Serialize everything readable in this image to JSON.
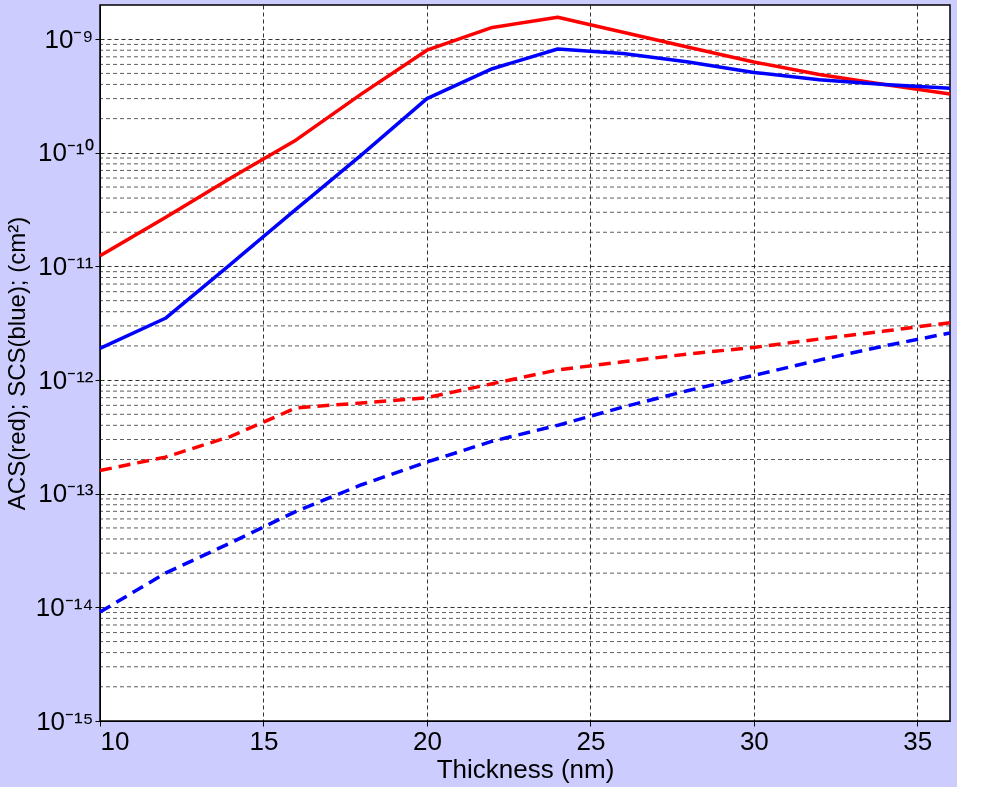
{
  "chart_data": {
    "type": "line",
    "xlabel": "Thickness (nm)",
    "ylabel": "ACS(red); SCS(blue); (cm²)",
    "x": [
      10,
      12,
      14,
      16,
      18,
      20,
      22,
      24,
      26,
      28,
      30,
      32,
      34,
      36
    ],
    "series": [
      {
        "color": "#ff0000",
        "line_style": "solid",
        "values": [
          1.24e-11,
          2.7e-11,
          6e-11,
          1.3e-10,
          3.3e-10,
          8e-10,
          1.27e-09,
          1.56e-09,
          1.15e-09,
          8.5e-10,
          6.3e-10,
          4.9e-10,
          4e-10,
          3.3e-10
        ]
      },
      {
        "color": "#0000ff",
        "line_style": "solid",
        "values": [
          1.9e-12,
          3.5e-12,
          1.05e-11,
          3.2e-11,
          9.6e-11,
          3e-10,
          5.5e-10,
          8.2e-10,
          7.5e-10,
          6.3e-10,
          5.1e-10,
          4.4e-10,
          4e-10,
          3.7e-10
        ]
      },
      {
        "color": "#ff0000",
        "line_style": "dashed",
        "values": [
          1.6e-13,
          2.1e-13,
          3.2e-13,
          5.7e-13,
          6.3e-13,
          7e-13,
          9.3e-13,
          1.23e-12,
          1.45e-12,
          1.7e-12,
          1.94e-12,
          2.3e-12,
          2.7e-12,
          3.2e-12
        ]
      },
      {
        "color": "#0000ff",
        "line_style": "dashed",
        "values": [
          9.1e-15,
          2e-14,
          3.7e-14,
          7e-14,
          1.2e-13,
          1.9e-13,
          2.9e-13,
          4e-13,
          5.8e-13,
          8.1e-13,
          1.1e-12,
          1.5e-12,
          2e-12,
          2.6e-12
        ]
      }
    ],
    "xlim": [
      10,
      36
    ],
    "xticks": [
      10,
      15,
      20,
      25,
      30,
      35
    ],
    "ylim": [
      1e-15,
      2e-09
    ],
    "log": true,
    "yticks": [
      {
        "value": 1e-15,
        "label": "10⁻¹⁵"
      },
      {
        "value": 1e-14,
        "label": "10⁻¹⁴"
      },
      {
        "value": 1e-13,
        "label": "10⁻¹³"
      },
      {
        "value": 1e-12,
        "label": "10⁻¹²"
      },
      {
        "value": 1e-11,
        "label": "10⁻¹¹"
      },
      {
        "value": 1e-10,
        "label": "10⁻¹⁰"
      },
      {
        "value": 1e-09,
        "label": "10⁻⁹"
      }
    ],
    "grid": true
  }
}
